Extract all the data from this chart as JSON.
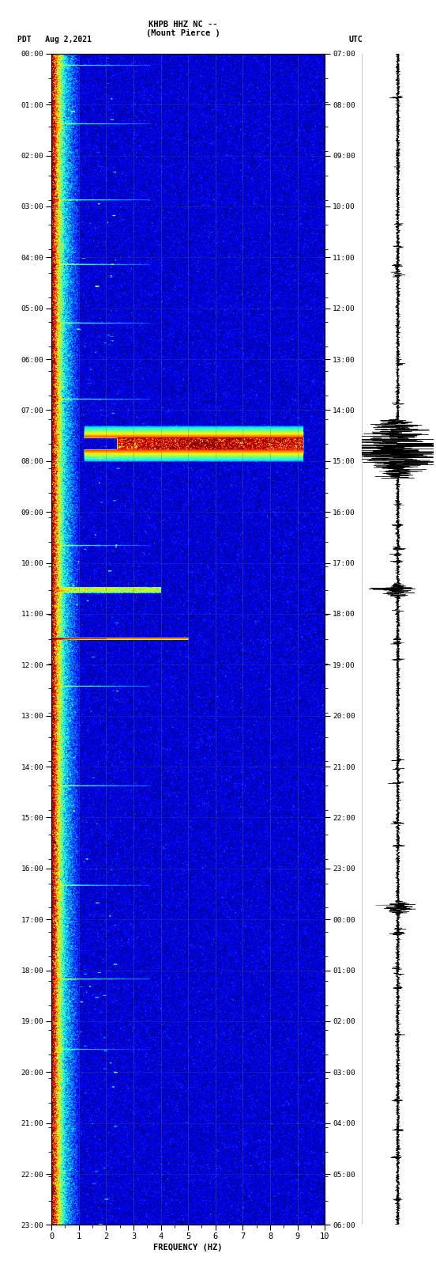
{
  "title_line1": "KHPB HHZ NC --",
  "title_line2": "(Mount Pierce )",
  "left_label": "PDT   Aug 2,2021",
  "right_label": "UTC",
  "xlabel": "FREQUENCY (HZ)",
  "freq_min": 0,
  "freq_max": 10,
  "left_ticks": [
    "00:00",
    "01:00",
    "02:00",
    "03:00",
    "04:00",
    "05:00",
    "06:00",
    "07:00",
    "08:00",
    "09:00",
    "10:00",
    "11:00",
    "12:00",
    "13:00",
    "14:00",
    "15:00",
    "16:00",
    "17:00",
    "18:00",
    "19:00",
    "20:00",
    "21:00",
    "22:00",
    "23:00"
  ],
  "right_ticks": [
    "07:00",
    "08:00",
    "09:00",
    "10:00",
    "11:00",
    "12:00",
    "13:00",
    "14:00",
    "15:00",
    "16:00",
    "17:00",
    "18:00",
    "19:00",
    "20:00",
    "21:00",
    "22:00",
    "23:00",
    "00:00",
    "01:00",
    "02:00",
    "03:00",
    "04:00",
    "05:00",
    "06:00"
  ],
  "logo_color": "#2E7D32",
  "event_pdt_hour_main": 8.0,
  "event_pdt_hour_small1": 11.0,
  "event_pdt_hour_small2": 12.0,
  "event_pdt_hour_small3": 13.0,
  "waveform_events": [
    8.0,
    11.0,
    17.5
  ],
  "waveform_amps": [
    1.0,
    0.35,
    0.28
  ],
  "grid_color": "#707070",
  "grid_alpha": 0.5,
  "spec_vmin_pct": 20,
  "spec_vmax_pct": 99
}
